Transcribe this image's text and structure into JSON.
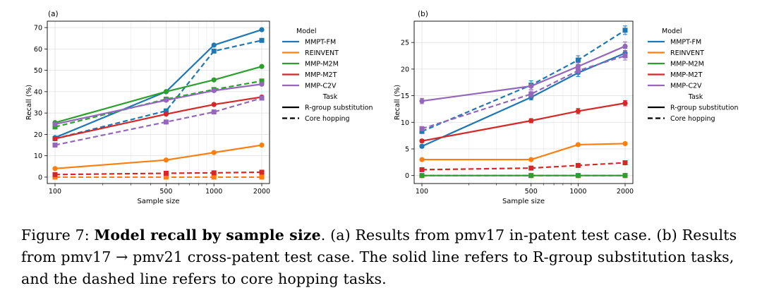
{
  "chart_data": [
    {
      "type": "line",
      "panel_label": "(a)",
      "xscale": "log",
      "xticks": [
        100,
        500,
        1000,
        2000
      ],
      "xlabel": "Sample size",
      "ylabel": "Recall (%)",
      "ylim": [
        -3,
        73
      ],
      "yticks": [
        0,
        10,
        20,
        30,
        40,
        50,
        60,
        70
      ],
      "grid": true,
      "legend_position": "outside-right",
      "series": [
        {
          "name": "MMPT-FM",
          "task": "R-group substitution",
          "color": "#1f77b4",
          "x": [
            100,
            500,
            1000,
            2000
          ],
          "values": [
            18.5,
            40.0,
            61.8,
            69.0
          ]
        },
        {
          "name": "MMPT-FM",
          "task": "Core hopping",
          "color": "#1f77b4",
          "x": [
            100,
            500,
            1000,
            2000
          ],
          "values": [
            18.0,
            31.0,
            59.0,
            64.0
          ]
        },
        {
          "name": "REINVENT",
          "task": "R-group substitution",
          "color": "#ff7f0e",
          "x": [
            100,
            500,
            1000,
            2000
          ],
          "values": [
            4.0,
            8.0,
            11.5,
            15.0
          ]
        },
        {
          "name": "REINVENT",
          "task": "Core hopping",
          "color": "#ff7f0e",
          "x": [
            100,
            500,
            1000,
            2000
          ],
          "values": [
            0.0,
            0.0,
            0.0,
            0.0
          ]
        },
        {
          "name": "MMP-M2M",
          "task": "R-group substitution",
          "color": "#2ca02c",
          "x": [
            100,
            500,
            1000,
            2000
          ],
          "values": [
            25.5,
            40.0,
            45.5,
            51.8
          ]
        },
        {
          "name": "MMP-M2M",
          "task": "Core hopping",
          "color": "#2ca02c",
          "x": [
            100,
            500,
            1000,
            2000
          ],
          "values": [
            23.5,
            36.5,
            41.0,
            45.0
          ]
        },
        {
          "name": "MMP-M2T",
          "task": "R-group substitution",
          "color": "#d62728",
          "x": [
            100,
            500,
            1000,
            2000
          ],
          "values": [
            18.0,
            29.5,
            34.0,
            37.5
          ]
        },
        {
          "name": "MMP-M2T",
          "task": "Core hopping",
          "color": "#d62728",
          "x": [
            100,
            500,
            1000,
            2000
          ],
          "values": [
            1.2,
            1.8,
            2.0,
            2.3
          ]
        },
        {
          "name": "MMP-C2V",
          "task": "R-group substitution",
          "color": "#9467bd",
          "x": [
            100,
            500,
            1000,
            2000
          ],
          "values": [
            24.8,
            36.0,
            40.5,
            43.5
          ]
        },
        {
          "name": "MMP-C2V",
          "task": "Core hopping",
          "color": "#9467bd",
          "x": [
            100,
            500,
            1000,
            2000
          ],
          "values": [
            15.0,
            25.8,
            30.5,
            37.0
          ]
        }
      ]
    },
    {
      "type": "line",
      "panel_label": "(b)",
      "xscale": "log",
      "xticks": [
        100,
        500,
        1000,
        2000
      ],
      "xlabel": "Sample size",
      "ylabel": "Recall (%)",
      "ylim": [
        -1.5,
        29
      ],
      "yticks": [
        0,
        5,
        10,
        15,
        20,
        25
      ],
      "grid": true,
      "legend_position": "outside-right",
      "error_bars": true,
      "series": [
        {
          "name": "MMPT-FM",
          "task": "R-group substitution",
          "color": "#1f77b4",
          "x": [
            100,
            500,
            1000,
            2000
          ],
          "values": [
            5.5,
            14.7,
            19.3,
            23.0
          ],
          "errors": [
            0.3,
            0.5,
            0.7,
            0.9
          ]
        },
        {
          "name": "MMPT-FM",
          "task": "Core hopping",
          "color": "#1f77b4",
          "x": [
            100,
            500,
            1000,
            2000
          ],
          "values": [
            8.3,
            17.0,
            21.7,
            27.3
          ],
          "errors": [
            0.4,
            0.8,
            0.8,
            0.8
          ]
        },
        {
          "name": "REINVENT",
          "task": "R-group substitution",
          "color": "#ff7f0e",
          "x": [
            100,
            500,
            1000,
            2000
          ],
          "values": [
            3.0,
            3.0,
            5.8,
            6.0
          ],
          "errors": [
            0.1,
            0.1,
            0.2,
            0.2
          ]
        },
        {
          "name": "REINVENT",
          "task": "Core hopping",
          "color": "#ff7f0e",
          "x": [
            100,
            500,
            1000,
            2000
          ],
          "values": [
            0.0,
            0.0,
            0.0,
            0.0
          ],
          "errors": [
            0.0,
            0.0,
            0.0,
            0.0
          ]
        },
        {
          "name": "MMP-M2M",
          "task": "R-group substitution",
          "color": "#2ca02c",
          "x": [
            100,
            500,
            1000,
            2000
          ],
          "values": [
            0.0,
            0.0,
            0.0,
            0.0
          ],
          "errors": [
            0.0,
            0.0,
            0.0,
            0.0
          ]
        },
        {
          "name": "MMP-M2M",
          "task": "Core hopping",
          "color": "#2ca02c",
          "x": [
            100,
            500,
            1000,
            2000
          ],
          "values": [
            0.0,
            0.0,
            0.0,
            0.0
          ],
          "errors": [
            0.0,
            0.0,
            0.0,
            0.0
          ]
        },
        {
          "name": "MMP-M2T",
          "task": "R-group substitution",
          "color": "#d62728",
          "x": [
            100,
            500,
            1000,
            2000
          ],
          "values": [
            6.5,
            10.3,
            12.1,
            13.6
          ],
          "errors": [
            0.3,
            0.4,
            0.5,
            0.5
          ]
        },
        {
          "name": "MMP-M2T",
          "task": "Core hopping",
          "color": "#d62728",
          "x": [
            100,
            500,
            1000,
            2000
          ],
          "values": [
            1.1,
            1.4,
            1.9,
            2.4
          ],
          "errors": [
            0.1,
            0.2,
            0.2,
            0.2
          ]
        },
        {
          "name": "MMP-C2V",
          "task": "R-group substitution",
          "color": "#9467bd",
          "x": [
            100,
            500,
            1000,
            2000
          ],
          "values": [
            14.0,
            16.8,
            20.5,
            24.3
          ],
          "errors": [
            0.5,
            0.6,
            0.7,
            0.8
          ]
        },
        {
          "name": "MMP-C2V",
          "task": "Core hopping",
          "color": "#9467bd",
          "x": [
            100,
            500,
            1000,
            2000
          ],
          "values": [
            8.8,
            15.3,
            19.7,
            22.5
          ],
          "errors": [
            0.4,
            0.6,
            0.7,
            0.8
          ]
        }
      ]
    }
  ],
  "legend": {
    "model_title": "Model",
    "models": [
      {
        "name": "MMPT-FM",
        "color": "#1f77b4"
      },
      {
        "name": "REINVENT",
        "color": "#ff7f0e"
      },
      {
        "name": "MMP-M2M",
        "color": "#2ca02c"
      },
      {
        "name": "MMP-M2T",
        "color": "#d62728"
      },
      {
        "name": "MMP-C2V",
        "color": "#9467bd"
      }
    ],
    "task_title": "Task",
    "tasks": [
      {
        "name": "R-group substitution",
        "style": "solid"
      },
      {
        "name": "Core hopping",
        "style": "dashed"
      }
    ]
  },
  "caption": {
    "prefix": "Figure 7: ",
    "bold": "Model recall by sample size",
    "rest": ".  (a) Results from pmv17 in-patent test case. (b) Results from pmv17 → pmv21 cross-patent test case. The solid line refers to R-group substitution tasks, and the dashed line refers to core hopping tasks."
  }
}
